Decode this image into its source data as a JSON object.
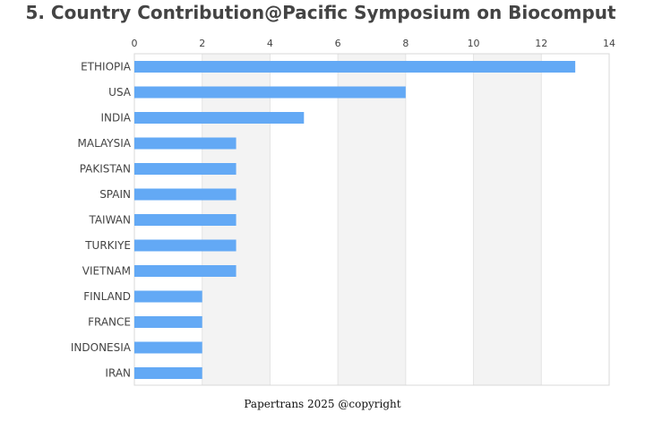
{
  "chart_data": {
    "type": "bar",
    "orientation": "horizontal",
    "title": "5. Country Contribution@Pacific Symposium on Biocomput",
    "categories": [
      "ETHIOPIA",
      "USA",
      "INDIA",
      "MALAYSIA",
      "PAKISTAN",
      "SPAIN",
      "TAIWAN",
      "TURKIYE",
      "VIETNAM",
      "FINLAND",
      "FRANCE",
      "INDONESIA",
      "IRAN"
    ],
    "values": [
      13,
      8,
      5,
      3,
      3,
      3,
      3,
      3,
      3,
      2,
      2,
      2,
      2
    ],
    "xlabel": "",
    "ylabel": "",
    "xlim": [
      0,
      14
    ],
    "xticks": [
      0,
      2,
      4,
      6,
      8,
      10,
      12,
      14
    ],
    "x_axis_position": "top",
    "grid": "alternating vertical bands",
    "legend": "none",
    "colors": {
      "bar": "#63a9f5",
      "band": "#f3f3f3",
      "title": "#444444",
      "label": "#444444"
    }
  },
  "footer": {
    "text": "Papertrans 2025 @copyright"
  }
}
